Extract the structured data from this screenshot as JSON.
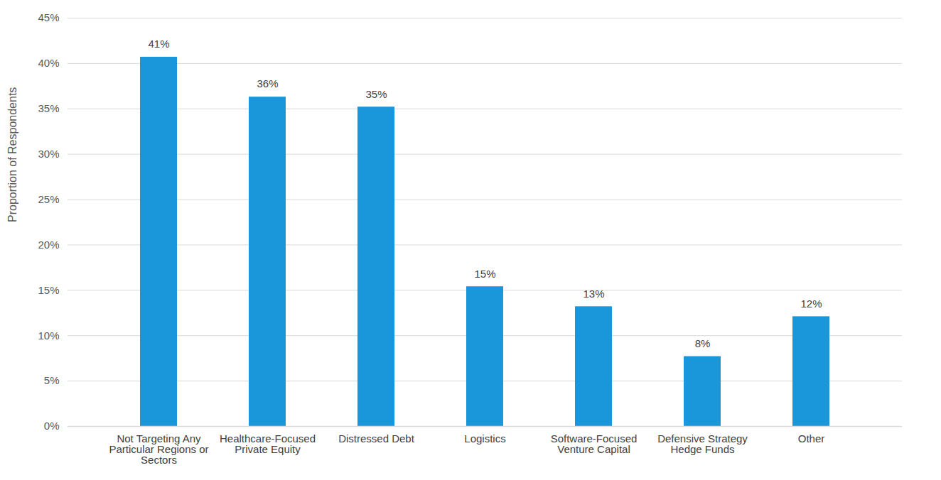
{
  "chart_data": {
    "type": "bar",
    "y_label": "Proportion of Respondents",
    "categories": [
      "Not Targeting Any Particular Regions or Sectors",
      "Healthcare-Focused Private Equity",
      "Distressed Debt",
      "Logistics",
      "Software-Focused Venture Capital",
      "Defensive Strategy Hedge Funds",
      "Other"
    ],
    "values": [
      40.7,
      36.3,
      35.2,
      15.4,
      13.2,
      7.7,
      12.1
    ],
    "value_labels": [
      "41%",
      "36%",
      "35%",
      "15%",
      "13%",
      "8%",
      "12%"
    ],
    "color": "#1a96da",
    "ylim": [
      0,
      45
    ],
    "yticks": [
      {
        "value": 0,
        "label": "0%"
      },
      {
        "value": 5,
        "label": "5%"
      },
      {
        "value": 10,
        "label": "10%"
      },
      {
        "value": 15,
        "label": "15%"
      },
      {
        "value": 20,
        "label": "20%"
      },
      {
        "value": 25,
        "label": "25%"
      },
      {
        "value": 30,
        "label": "30%"
      },
      {
        "value": 35,
        "label": "35%"
      },
      {
        "value": 40,
        "label": "40%"
      },
      {
        "value": 45,
        "label": "45%"
      }
    ],
    "grid": true,
    "data_labels": true
  }
}
